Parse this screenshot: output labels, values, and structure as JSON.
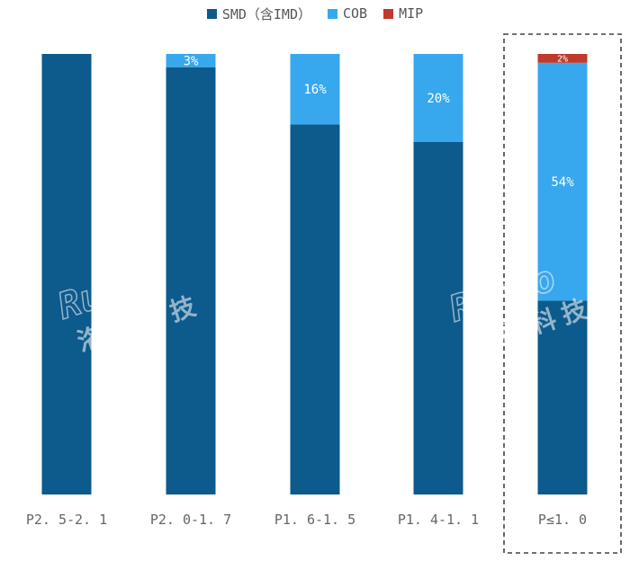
{
  "chart_data": {
    "type": "bar",
    "stacked": true,
    "normalized": true,
    "categories": [
      "P2.5-2.1",
      "P2.0-1.7",
      "P1.6-1.5",
      "P1.4-1.1",
      "P≤1.0"
    ],
    "series": [
      {
        "name": "SMD（含IMD）",
        "values": [
          100,
          97,
          84,
          80,
          44
        ],
        "color": "#0d5a8c",
        "labels": [
          "",
          "",
          "",
          "",
          ""
        ]
      },
      {
        "name": "COB",
        "values": [
          0,
          3,
          16,
          20,
          54
        ],
        "color": "#38a8ee",
        "labels": [
          "",
          "3%",
          "16%",
          "20%",
          "54%"
        ]
      },
      {
        "name": "MIP",
        "values": [
          0,
          0,
          0,
          0,
          2
        ],
        "color": "#c0392b",
        "labels": [
          "",
          "",
          "",
          "",
          "2%"
        ]
      }
    ],
    "ylim": [
      0,
      100
    ],
    "highlight_category": "P≤1.0",
    "grid": false,
    "legend_position": "top"
  },
  "watermark": {
    "brand": "Runto",
    "chinese": "洛图科技"
  },
  "tick_labels_display": [
    "P2. 5-2. 1",
    "P2. 0-1. 7",
    "P1. 6-1. 5",
    "P1. 4-1. 1",
    "P≤1. 0"
  ]
}
